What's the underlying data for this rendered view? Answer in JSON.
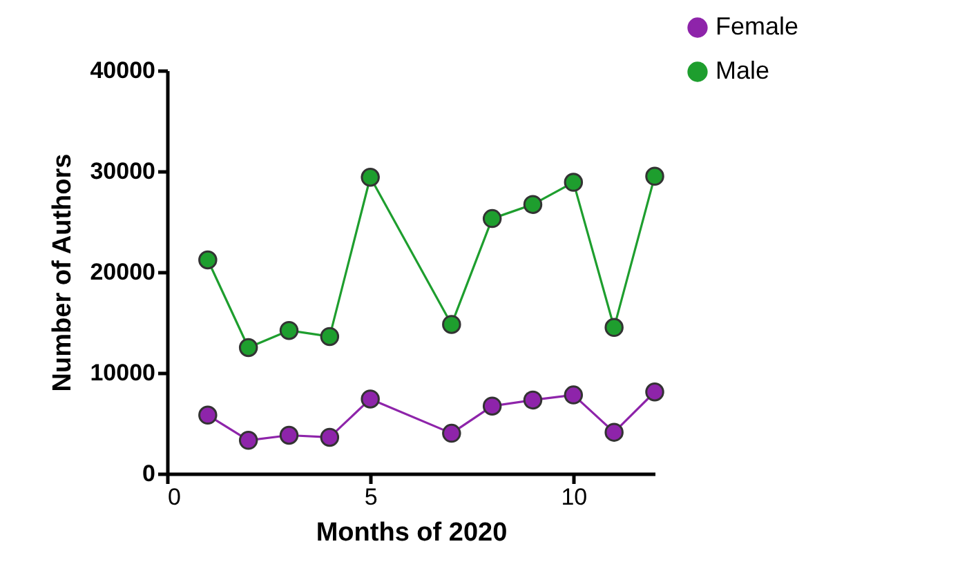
{
  "chart_data": {
    "type": "line",
    "xlabel": "Months of 2020",
    "ylabel": "Number of Authors",
    "x": [
      1,
      2,
      3,
      4,
      5,
      7,
      8,
      9,
      10,
      11,
      12
    ],
    "series": [
      {
        "name": "Female",
        "color": "#8e24aa",
        "values": [
          5800,
          3300,
          3800,
          3600,
          7400,
          4000,
          6700,
          7300,
          7800,
          4100,
          8100
        ]
      },
      {
        "name": "Male",
        "color": "#1e9e2e",
        "values": [
          21200,
          12500,
          14200,
          13600,
          29400,
          14800,
          25300,
          26700,
          28900,
          14500,
          29500
        ]
      }
    ],
    "xlim": [
      0,
      12
    ],
    "xticks": [
      0,
      5,
      10
    ],
    "ylim": [
      0,
      40000
    ],
    "yticks": [
      0,
      10000,
      20000,
      30000,
      40000
    ],
    "grid": false,
    "legend": "top right",
    "marker": "circle",
    "line_style": "solid"
  }
}
